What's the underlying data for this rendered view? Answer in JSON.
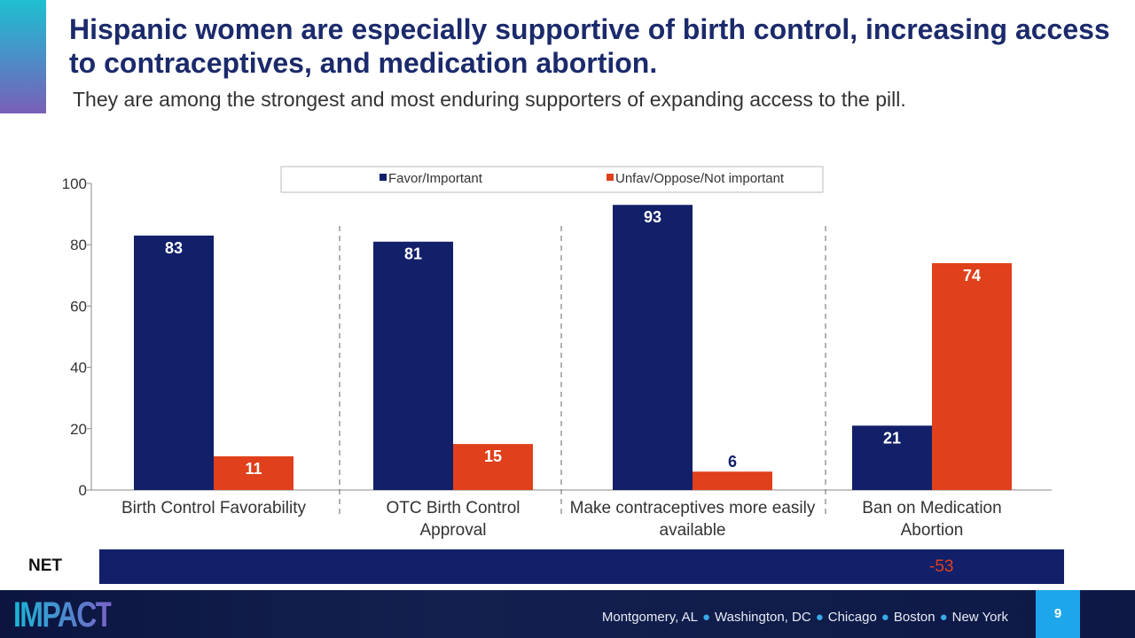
{
  "header": {
    "title": "Hispanic women are especially supportive of birth control, increasing access to contraceptives, and medication abortion.",
    "subtitle": "They are among the strongest and most enduring supporters of expanding access to the pill."
  },
  "chart_data": {
    "type": "bar",
    "categories": [
      "Birth Control Favorability",
      "OTC Birth Control Approval",
      "Make contraceptives more easily available",
      "Ban on Medication Abortion"
    ],
    "series": [
      {
        "name": "Favor/Important",
        "color": "#12206a",
        "values": [
          83,
          81,
          93,
          21
        ]
      },
      {
        "name": "Unfav/Oppose/Not important",
        "color": "#e0401c",
        "values": [
          11,
          15,
          6,
          74
        ]
      }
    ],
    "ylim": [
      0,
      100
    ],
    "yticks": [
      0,
      20,
      40,
      60,
      80,
      100
    ],
    "legend": "top",
    "grid": false
  },
  "net": {
    "label": "NET",
    "values": [
      "-53"
    ]
  },
  "footer": {
    "logo": "IMPACT",
    "cities": [
      "Montgomery, AL",
      "Washington, DC",
      "Chicago",
      "Boston",
      "New York"
    ],
    "page": "9"
  }
}
